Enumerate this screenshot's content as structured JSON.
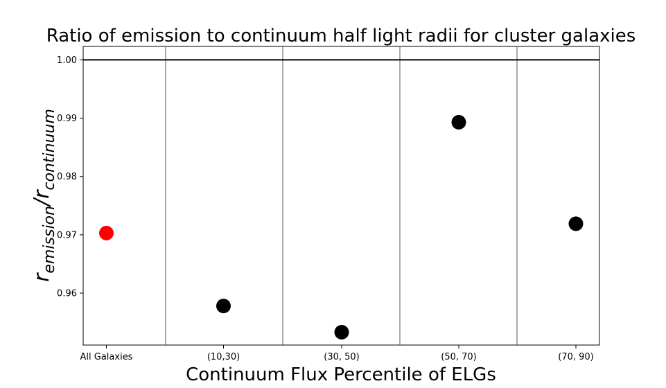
{
  "chart_data": {
    "type": "scatter",
    "title": "Ratio of emission to continuum half light radii for cluster galaxies",
    "xlabel": "Continuum Flux Percentile of ELGs",
    "ylabel": {
      "main": "r",
      "sub1": "emission",
      "sep": "/r",
      "sub2": "continuum"
    },
    "categories": [
      "All Galaxies",
      "(10,30)",
      "(30, 50)",
      "(50, 70)",
      "(70, 90)"
    ],
    "values": [
      0.9703,
      0.9578,
      0.9533,
      0.9893,
      0.9719
    ],
    "point_colors": [
      "#ff0000",
      "#000000",
      "#000000",
      "#000000",
      "#000000"
    ],
    "reference_line": 1.0,
    "ylim": [
      0.9511,
      1.0023
    ],
    "yticks": [
      "0.96",
      "0.97",
      "0.98",
      "0.99",
      "1.00"
    ],
    "grid": false
  }
}
